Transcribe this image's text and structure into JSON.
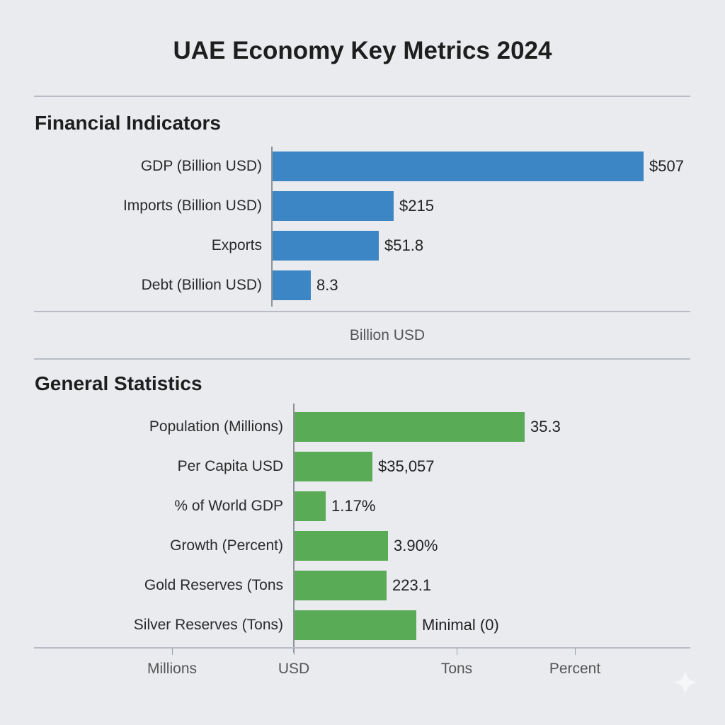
{
  "chart_data": [
    {
      "type": "bar",
      "orientation": "horizontal",
      "title": "UAE Economy Key Metrics 2024",
      "subtitle": "Financial Indicators",
      "xlabel": "Billion USD",
      "color": "#3d86c6",
      "categories": [
        "GDP (Billion USD)",
        "Imports (Billion USD)",
        "Exports",
        "Debt (Billion USD)"
      ],
      "values": [
        507,
        215,
        51.8,
        8.3
      ],
      "value_labels": [
        "$507",
        "$215",
        "$51.8",
        "8.3"
      ],
      "bar_fill_fraction": [
        1.0,
        0.326,
        0.286,
        0.103
      ]
    },
    {
      "type": "bar",
      "orientation": "horizontal",
      "subtitle": "General Statistics",
      "color": "#5aab55",
      "categories": [
        "Population (Millions)",
        "Per Capita USD",
        "% of World GDP",
        "Growth (Percent)",
        "Gold Reserves (Tons",
        "Silver Reserves (Tons)"
      ],
      "values": [
        35.3,
        35057,
        1.17,
        3.9,
        223.1,
        0
      ],
      "value_labels": [
        "35.3",
        "$35,057",
        "1.17%",
        "3.90%",
        "223.1",
        "Minimal (0)"
      ],
      "bar_fill_fraction": [
        1.0,
        0.338,
        0.135,
        0.406,
        0.4,
        0.529
      ],
      "x_tick_labels": [
        "Millions",
        "USD",
        "Tons",
        "Percent"
      ]
    }
  ]
}
